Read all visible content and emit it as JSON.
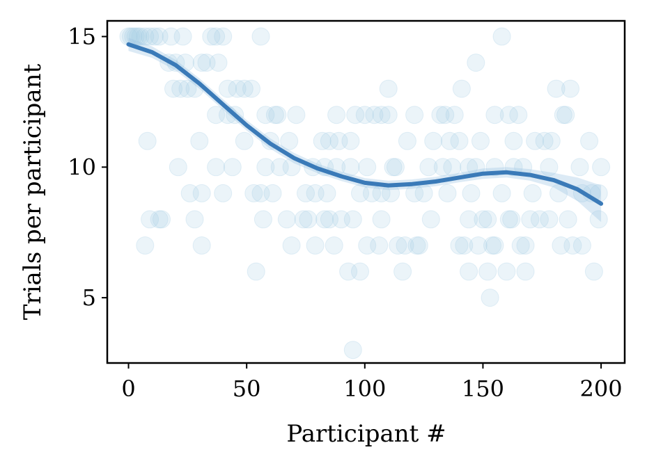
{
  "chart_data": {
    "type": "scatter",
    "title": "",
    "xlabel": "Participant #",
    "ylabel": "Trials per participant",
    "xlim": [
      -9,
      210
    ],
    "ylim": [
      2.5,
      15.6
    ],
    "xticks": [
      "0",
      "50",
      "100",
      "150",
      "200"
    ],
    "yticks": [
      "5",
      "10",
      "15"
    ],
    "grid": false,
    "colors": {
      "points": "#a6cee3",
      "line": "#3a7ab8",
      "band": "#9cc3e3"
    },
    "series": [
      {
        "type": "scatter",
        "points": [
          [
            0,
            15
          ],
          [
            1,
            15
          ],
          [
            2,
            15
          ],
          [
            3,
            15
          ],
          [
            4,
            15
          ],
          [
            5,
            15
          ],
          [
            7,
            15
          ],
          [
            9,
            15
          ],
          [
            11,
            15
          ],
          [
            13,
            15
          ],
          [
            18,
            15
          ],
          [
            23,
            15
          ],
          [
            35,
            15
          ],
          [
            37,
            15
          ],
          [
            40,
            15
          ],
          [
            56,
            15
          ],
          [
            158,
            15
          ],
          [
            17,
            14
          ],
          [
            20,
            14
          ],
          [
            24,
            14
          ],
          [
            31,
            14
          ],
          [
            33,
            14
          ],
          [
            38,
            14
          ],
          [
            147,
            14
          ],
          [
            19,
            13
          ],
          [
            22,
            13
          ],
          [
            25,
            13
          ],
          [
            28,
            13
          ],
          [
            42,
            13
          ],
          [
            46,
            13
          ],
          [
            49,
            13
          ],
          [
            52,
            13
          ],
          [
            110,
            13
          ],
          [
            141,
            13
          ],
          [
            181,
            13
          ],
          [
            187,
            13
          ],
          [
            37,
            12
          ],
          [
            42,
            12
          ],
          [
            45,
            12
          ],
          [
            58,
            12
          ],
          [
            62,
            12
          ],
          [
            63,
            12
          ],
          [
            71,
            12
          ],
          [
            88,
            12
          ],
          [
            96,
            12
          ],
          [
            100,
            12
          ],
          [
            104,
            12
          ],
          [
            107,
            12
          ],
          [
            110,
            12
          ],
          [
            121,
            12
          ],
          [
            132,
            12
          ],
          [
            134,
            12
          ],
          [
            138,
            12
          ],
          [
            155,
            12
          ],
          [
            161,
            12
          ],
          [
            165,
            12
          ],
          [
            184,
            12
          ],
          [
            185,
            12
          ],
          [
            8,
            11
          ],
          [
            30,
            11
          ],
          [
            49,
            11
          ],
          [
            60,
            11
          ],
          [
            68,
            11
          ],
          [
            82,
            11
          ],
          [
            85,
            11
          ],
          [
            89,
            11
          ],
          [
            94,
            11
          ],
          [
            118,
            11
          ],
          [
            129,
            11
          ],
          [
            136,
            11
          ],
          [
            140,
            11
          ],
          [
            149,
            11
          ],
          [
            163,
            11
          ],
          [
            172,
            11
          ],
          [
            176,
            11
          ],
          [
            179,
            11
          ],
          [
            195,
            11
          ],
          [
            21,
            10
          ],
          [
            37,
            10
          ],
          [
            44,
            10
          ],
          [
            58,
            10
          ],
          [
            64,
            10
          ],
          [
            69,
            10
          ],
          [
            78,
            10
          ],
          [
            83,
            10
          ],
          [
            88,
            10
          ],
          [
            94,
            10
          ],
          [
            101,
            10
          ],
          [
            112,
            10
          ],
          [
            113,
            10
          ],
          [
            127,
            10
          ],
          [
            133,
            10
          ],
          [
            137,
            10
          ],
          [
            144,
            10
          ],
          [
            147,
            10
          ],
          [
            155,
            10
          ],
          [
            163,
            10
          ],
          [
            167,
            10
          ],
          [
            178,
            10
          ],
          [
            191,
            10
          ],
          [
            200,
            10
          ],
          [
            26,
            9
          ],
          [
            31,
            9
          ],
          [
            40,
            9
          ],
          [
            53,
            9
          ],
          [
            56,
            9
          ],
          [
            61,
            9
          ],
          [
            75,
            9
          ],
          [
            79,
            9
          ],
          [
            84,
            9
          ],
          [
            98,
            9
          ],
          [
            103,
            9
          ],
          [
            107,
            9
          ],
          [
            111,
            9
          ],
          [
            121,
            9
          ],
          [
            125,
            9
          ],
          [
            135,
            9
          ],
          [
            145,
            9
          ],
          [
            158,
            9
          ],
          [
            171,
            9
          ],
          [
            182,
            9
          ],
          [
            192,
            9
          ],
          [
            196,
            9
          ],
          [
            199,
            9
          ],
          [
            9,
            8
          ],
          [
            13,
            8
          ],
          [
            14,
            8
          ],
          [
            28,
            8
          ],
          [
            57,
            8
          ],
          [
            67,
            8
          ],
          [
            74,
            8
          ],
          [
            76,
            8
          ],
          [
            83,
            8
          ],
          [
            85,
            8
          ],
          [
            90,
            8
          ],
          [
            95,
            8
          ],
          [
            107,
            8
          ],
          [
            128,
            8
          ],
          [
            144,
            8
          ],
          [
            150,
            8
          ],
          [
            152,
            8
          ],
          [
            161,
            8
          ],
          [
            162,
            8
          ],
          [
            170,
            8
          ],
          [
            174,
            8
          ],
          [
            178,
            8
          ],
          [
            186,
            8
          ],
          [
            199,
            8
          ],
          [
            7,
            7
          ],
          [
            31,
            7
          ],
          [
            69,
            7
          ],
          [
            79,
            7
          ],
          [
            87,
            7
          ],
          [
            101,
            7
          ],
          [
            106,
            7
          ],
          [
            114,
            7
          ],
          [
            117,
            7
          ],
          [
            122,
            7
          ],
          [
            123,
            7
          ],
          [
            140,
            7
          ],
          [
            142,
            7
          ],
          [
            148,
            7
          ],
          [
            154,
            7
          ],
          [
            155,
            7
          ],
          [
            166,
            7
          ],
          [
            168,
            7
          ],
          [
            183,
            7
          ],
          [
            188,
            7
          ],
          [
            192,
            7
          ],
          [
            54,
            6
          ],
          [
            93,
            6
          ],
          [
            98,
            6
          ],
          [
            116,
            6
          ],
          [
            144,
            6
          ],
          [
            152,
            6
          ],
          [
            160,
            6
          ],
          [
            168,
            6
          ],
          [
            197,
            6
          ],
          [
            153,
            5
          ],
          [
            95,
            3
          ]
        ]
      },
      {
        "type": "line",
        "x": [
          0,
          10,
          20,
          30,
          40,
          50,
          60,
          70,
          80,
          90,
          100,
          110,
          120,
          130,
          140,
          150,
          160,
          170,
          180,
          190,
          200
        ],
        "y": [
          14.7,
          14.4,
          13.9,
          13.2,
          12.4,
          11.6,
          10.9,
          10.35,
          9.95,
          9.65,
          9.4,
          9.3,
          9.35,
          9.45,
          9.6,
          9.75,
          9.8,
          9.7,
          9.5,
          9.15,
          8.6
        ],
        "band_halfwidth": [
          0.25,
          0.22,
          0.2,
          0.2,
          0.2,
          0.2,
          0.2,
          0.2,
          0.18,
          0.18,
          0.18,
          0.18,
          0.18,
          0.18,
          0.18,
          0.2,
          0.2,
          0.22,
          0.28,
          0.45,
          0.7
        ]
      }
    ]
  }
}
